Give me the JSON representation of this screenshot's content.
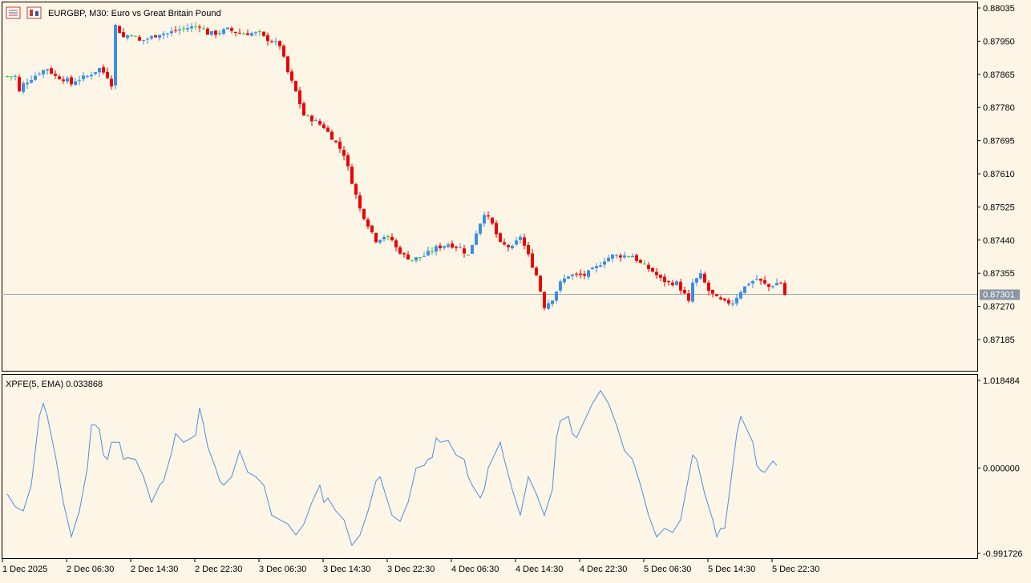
{
  "window": {
    "symbol_title": "EURGBP, M30:  Euro vs Great Britain Pound",
    "icons": [
      "chart-window-icon",
      "candles-toggle-icon"
    ]
  },
  "colors": {
    "background": "#fdf5e6",
    "bull": "#3a8ee6",
    "bear": "#ee0000",
    "doji": "#2ecc40",
    "indicator_line": "#4a90e2",
    "current_price_label_bg": "#8a96a3",
    "frame": "#000000"
  },
  "main_pane": {
    "price_axis_labels": [
      "0.88035",
      "0.87950",
      "0.87865",
      "0.87780",
      "0.87695",
      "0.87610",
      "0.87525",
      "0.87440",
      "0.87355",
      "0.87270",
      "0.87185"
    ],
    "current_price": "0.87301"
  },
  "indicator_pane": {
    "title": "XPFE(5, EMA) 0.033868",
    "axis_labels": [
      "1.018484",
      "0.000000",
      "-0.991726"
    ]
  },
  "time_axis_labels": [
    "1 Dec 2025",
    "2 Dec 06:30",
    "2 Dec 14:30",
    "2 Dec 22:30",
    "3 Dec 06:30",
    "3 Dec 14:30",
    "3 Dec 22:30",
    "4 Dec 06:30",
    "4 Dec 14:30",
    "4 Dec 22:30",
    "5 Dec 06:30",
    "5 Dec 14:30",
    "5 Dec 22:30"
  ],
  "chart_data": [
    {
      "type": "candlestick",
      "title": "EURGBP, M30:  Euro vs Great Britain Pound",
      "ylim": [
        0.8715,
        0.8807
      ],
      "current_price": 0.87301,
      "close_path": [
        [
          0,
          0.8786
        ],
        [
          2,
          0.8786
        ],
        [
          3,
          0.8782
        ],
        [
          4,
          0.8784
        ],
        [
          8,
          0.8787
        ],
        [
          10,
          0.8788
        ],
        [
          12,
          0.8786
        ],
        [
          15,
          0.8785
        ],
        [
          16,
          0.8784
        ],
        [
          17,
          0.8785
        ],
        [
          20,
          0.8786
        ],
        [
          23,
          0.8788
        ],
        [
          25,
          0.8786
        ],
        [
          26,
          0.8784
        ],
        [
          27,
          0.8799
        ],
        [
          29,
          0.8796
        ],
        [
          31,
          0.8797
        ],
        [
          33,
          0.8795
        ],
        [
          36,
          0.8796
        ],
        [
          38,
          0.8797
        ],
        [
          40,
          0.8797
        ],
        [
          43,
          0.8798
        ],
        [
          48,
          0.8799
        ],
        [
          50,
          0.8797
        ],
        [
          52,
          0.8797
        ],
        [
          55,
          0.8798
        ],
        [
          58,
          0.8797
        ],
        [
          61,
          0.8797
        ],
        [
          63,
          0.8797
        ],
        [
          64,
          0.8796
        ],
        [
          66,
          0.8795
        ],
        [
          68,
          0.8794
        ],
        [
          70,
          0.8787
        ],
        [
          72,
          0.8782
        ],
        [
          74,
          0.8776
        ],
        [
          76,
          0.8775
        ],
        [
          79,
          0.8773
        ],
        [
          82,
          0.8769
        ],
        [
          84,
          0.8766
        ],
        [
          86,
          0.8759
        ],
        [
          88,
          0.8752
        ],
        [
          90,
          0.8748
        ],
        [
          92,
          0.8744
        ],
        [
          94,
          0.8745
        ],
        [
          96,
          0.8744
        ],
        [
          97,
          0.8742
        ],
        [
          99,
          0.874
        ],
        [
          101,
          0.8739
        ],
        [
          104,
          0.874
        ],
        [
          107,
          0.8742
        ],
        [
          110,
          0.8743
        ],
        [
          113,
          0.8742
        ],
        [
          115,
          0.874
        ],
        [
          117,
          0.8746
        ],
        [
          119,
          0.8751
        ],
        [
          121,
          0.8748
        ],
        [
          123,
          0.8743
        ],
        [
          126,
          0.8742
        ],
        [
          128,
          0.8745
        ],
        [
          130,
          0.874
        ],
        [
          132,
          0.8735
        ],
        [
          133,
          0.8731
        ],
        [
          134,
          0.8727
        ],
        [
          136,
          0.8729
        ],
        [
          138,
          0.8733
        ],
        [
          140,
          0.8735
        ],
        [
          144,
          0.8735
        ],
        [
          147,
          0.8737
        ],
        [
          149,
          0.8739
        ],
        [
          151,
          0.874
        ],
        [
          153,
          0.874
        ],
        [
          156,
          0.874
        ],
        [
          158,
          0.8738
        ],
        [
          161,
          0.8736
        ],
        [
          163,
          0.8734
        ],
        [
          165,
          0.8733
        ],
        [
          167,
          0.8733
        ],
        [
          169,
          0.873
        ],
        [
          170,
          0.8728
        ],
        [
          171,
          0.8733
        ],
        [
          173,
          0.8735
        ],
        [
          175,
          0.8731
        ],
        [
          177,
          0.8729
        ],
        [
          179,
          0.8728
        ],
        [
          181,
          0.8728
        ],
        [
          183,
          0.8731
        ],
        [
          185,
          0.8733
        ],
        [
          187,
          0.8734
        ],
        [
          190,
          0.8732
        ],
        [
          192,
          0.8733
        ],
        [
          193,
          0.8733
        ],
        [
          194,
          0.873
        ]
      ]
    },
    {
      "type": "line",
      "title": "XPFE(5, EMA)",
      "ylim": [
        -0.991726,
        1.018484
      ],
      "last_value": 0.033868,
      "points": [
        [
          0,
          -0.3
        ],
        [
          2,
          -0.45
        ],
        [
          4,
          -0.5
        ],
        [
          6,
          -0.2
        ],
        [
          8,
          0.6
        ],
        [
          9,
          0.75
        ],
        [
          10,
          0.6
        ],
        [
          12,
          0.15
        ],
        [
          14,
          -0.4
        ],
        [
          16,
          -0.8
        ],
        [
          18,
          -0.5
        ],
        [
          20,
          0.0
        ],
        [
          21,
          0.5
        ],
        [
          22,
          0.5
        ],
        [
          23,
          0.45
        ],
        [
          24,
          0.15
        ],
        [
          25,
          0.1
        ],
        [
          26,
          0.3
        ],
        [
          27,
          0.3
        ],
        [
          28,
          0.3
        ],
        [
          29,
          0.1
        ],
        [
          30,
          0.12
        ],
        [
          32,
          0.1
        ],
        [
          34,
          -0.1
        ],
        [
          36,
          -0.4
        ],
        [
          38,
          -0.2
        ],
        [
          39,
          -0.15
        ],
        [
          41,
          0.18
        ],
        [
          42,
          0.4
        ],
        [
          44,
          0.3
        ],
        [
          46,
          0.35
        ],
        [
          47,
          0.38
        ],
        [
          48,
          0.7
        ],
        [
          49,
          0.5
        ],
        [
          50,
          0.25
        ],
        [
          52,
          0.0
        ],
        [
          53,
          -0.15
        ],
        [
          54,
          -0.2
        ],
        [
          56,
          -0.1
        ],
        [
          58,
          0.2
        ],
        [
          60,
          -0.05
        ],
        [
          62,
          -0.1
        ],
        [
          64,
          -0.2
        ],
        [
          66,
          -0.55
        ],
        [
          68,
          -0.6
        ],
        [
          70,
          -0.65
        ],
        [
          72,
          -0.78
        ],
        [
          74,
          -0.65
        ],
        [
          76,
          -0.4
        ],
        [
          78,
          -0.2
        ],
        [
          79,
          -0.4
        ],
        [
          80,
          -0.35
        ],
        [
          82,
          -0.5
        ],
        [
          84,
          -0.6
        ],
        [
          86,
          -0.9
        ],
        [
          88,
          -0.78
        ],
        [
          90,
          -0.5
        ],
        [
          92,
          -0.15
        ],
        [
          93,
          -0.1
        ],
        [
          94,
          -0.25
        ],
        [
          96,
          -0.55
        ],
        [
          98,
          -0.62
        ],
        [
          100,
          -0.4
        ],
        [
          102,
          0.0
        ],
        [
          104,
          0.03
        ],
        [
          105,
          0.1
        ],
        [
          106,
          0.12
        ],
        [
          107,
          0.35
        ],
        [
          108,
          0.3
        ],
        [
          110,
          0.32
        ],
        [
          112,
          0.15
        ],
        [
          114,
          0.1
        ],
        [
          115,
          -0.1
        ],
        [
          116,
          -0.2
        ],
        [
          118,
          -0.35
        ],
        [
          119,
          -0.25
        ],
        [
          120,
          0.0
        ],
        [
          122,
          0.2
        ],
        [
          123,
          0.3
        ],
        [
          124,
          0.1
        ],
        [
          126,
          -0.25
        ],
        [
          128,
          -0.55
        ],
        [
          130,
          -0.1
        ],
        [
          132,
          -0.3
        ],
        [
          134,
          -0.55
        ],
        [
          136,
          -0.25
        ],
        [
          137,
          0.35
        ],
        [
          138,
          0.55
        ],
        [
          140,
          0.6
        ],
        [
          141,
          0.4
        ],
        [
          142,
          0.35
        ],
        [
          144,
          0.55
        ],
        [
          146,
          0.75
        ],
        [
          148,
          0.9
        ],
        [
          150,
          0.75
        ],
        [
          152,
          0.5
        ],
        [
          154,
          0.2
        ],
        [
          156,
          0.1
        ],
        [
          158,
          -0.2
        ],
        [
          160,
          -0.55
        ],
        [
          162,
          -0.8
        ],
        [
          164,
          -0.7
        ],
        [
          166,
          -0.75
        ],
        [
          168,
          -0.6
        ],
        [
          170,
          -0.1
        ],
        [
          171,
          0.15
        ],
        [
          172,
          0.1
        ],
        [
          173,
          -0.1
        ],
        [
          174,
          -0.3
        ],
        [
          176,
          -0.6
        ],
        [
          177,
          -0.8
        ],
        [
          178,
          -0.7
        ],
        [
          179,
          -0.7
        ],
        [
          180,
          -0.35
        ],
        [
          182,
          0.4
        ],
        [
          183,
          0.6
        ],
        [
          184,
          0.5
        ],
        [
          186,
          0.3
        ],
        [
          187,
          0.03
        ],
        [
          188,
          -0.03
        ],
        [
          189,
          -0.05
        ],
        [
          190,
          0.02
        ],
        [
          191,
          0.08
        ],
        [
          192,
          0.03
        ]
      ]
    }
  ]
}
